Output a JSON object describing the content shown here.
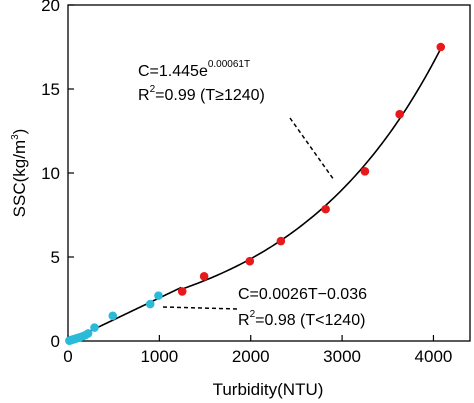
{
  "chart_data": {
    "type": "scatter",
    "xlabel": "Turbidity(NTU)",
    "ylabel_main": "SSC(kg/m",
    "ylabel_sup": "3",
    "ylabel_close": ")",
    "xlim": [
      0,
      4400
    ],
    "ylim": [
      0,
      20
    ],
    "xticks": [
      0,
      1000,
      2000,
      3000,
      4000
    ],
    "yticks": [
      0,
      5,
      10,
      15,
      20
    ],
    "grid": false,
    "series": [
      {
        "color": "#e8191a",
        "points": [
          {
            "x": 1250,
            "y": 2.95
          },
          {
            "x": 1490,
            "y": 3.85
          },
          {
            "x": 1990,
            "y": 4.75
          },
          {
            "x": 2330,
            "y": 5.95
          },
          {
            "x": 2820,
            "y": 7.85
          },
          {
            "x": 3250,
            "y": 10.1
          },
          {
            "x": 3630,
            "y": 13.5
          },
          {
            "x": 4080,
            "y": 17.5
          }
        ]
      },
      {
        "color": "#2bbbd9",
        "points": [
          {
            "x": 15,
            "y": 0.02
          },
          {
            "x": 30,
            "y": 0.05
          },
          {
            "x": 45,
            "y": 0.08
          },
          {
            "x": 60,
            "y": 0.1
          },
          {
            "x": 75,
            "y": 0.12
          },
          {
            "x": 90,
            "y": 0.15
          },
          {
            "x": 110,
            "y": 0.18
          },
          {
            "x": 130,
            "y": 0.22
          },
          {
            "x": 160,
            "y": 0.28
          },
          {
            "x": 190,
            "y": 0.35
          },
          {
            "x": 220,
            "y": 0.45
          },
          {
            "x": 290,
            "y": 0.8
          },
          {
            "x": 490,
            "y": 1.5
          },
          {
            "x": 900,
            "y": 2.2
          },
          {
            "x": 990,
            "y": 2.7
          }
        ]
      }
    ],
    "fits": [
      {
        "kind": "linear",
        "slope": 0.0026,
        "intercept": -0.036,
        "range": [
          0,
          1240
        ]
      },
      {
        "kind": "exponential",
        "a": 1.445,
        "b": 0.00061,
        "range": [
          1240,
          4100
        ]
      }
    ],
    "annotations": [
      {
        "eq_main": "C=1.445e",
        "eq_sup": "0.00061T",
        "r2_main": "R",
        "r2_sup": "2",
        "r2_rest": "=0.99 (T≥1240)"
      },
      {
        "eq_main": "C=0.0026T−0.036",
        "r2_main": "R",
        "r2_sup": "2",
        "r2_rest": "=0.98 (T<1240)"
      }
    ]
  }
}
